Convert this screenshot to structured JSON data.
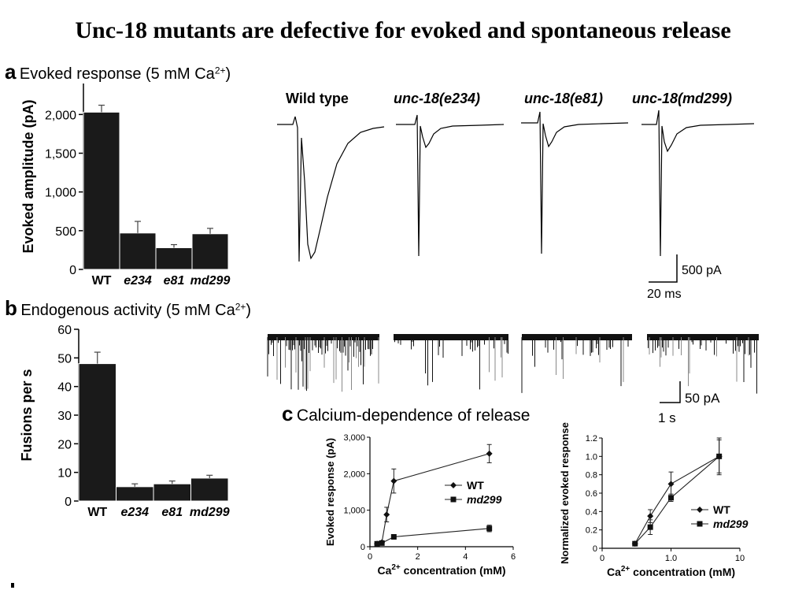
{
  "title": "Unc-18 mutants are defective for evoked and spontaneous release",
  "panel_a": {
    "letter": "a",
    "title": "Evoked response (5 mM Ca",
    "title_sup": "2+",
    "title_end": ")",
    "trace_labels": [
      "Wild type",
      "unc-18(e234)",
      "unc-18(e81)",
      "unc-18(md299)"
    ],
    "scale_y": "500 pA",
    "scale_x": "20 ms"
  },
  "panel_b": {
    "letter": "b",
    "title": "Endogenous activity (5 mM Ca",
    "title_sup": "2+",
    "title_end": ")",
    "scale_y": "50 pA",
    "scale_x": "1 s"
  },
  "panel_c": {
    "letter": "c",
    "title": "Calcium-dependence of release"
  },
  "chart_data": [
    {
      "id": "a-bar",
      "type": "bar",
      "ylabel": "Evoked amplitude (pA)",
      "categories": [
        "WT",
        "e234",
        "e81",
        "md299"
      ],
      "values": [
        2030,
        470,
        280,
        460
      ],
      "errors": [
        90,
        150,
        40,
        70
      ],
      "ylim": [
        0,
        2400
      ],
      "yticks": [
        0,
        500,
        1000,
        1500,
        2000
      ],
      "ytick_labels": [
        "0",
        "500",
        "1,000",
        "1,500",
        "2,000"
      ]
    },
    {
      "id": "b-bar",
      "type": "bar",
      "ylabel": "Fusions per s",
      "categories": [
        "WT",
        "e234",
        "e81",
        "md299"
      ],
      "values": [
        48,
        5,
        6,
        8
      ],
      "errors": [
        4,
        1,
        1,
        1
      ],
      "ylim": [
        0,
        60
      ],
      "yticks": [
        0,
        10,
        20,
        30,
        40,
        50,
        60
      ],
      "ytick_labels": [
        "0",
        "10",
        "20",
        "30",
        "40",
        "50",
        "60"
      ]
    },
    {
      "id": "c-left",
      "type": "line",
      "xlabel": "Ca",
      "xlabel_sup": "2+",
      "xlabel_end": " concentration (mM)",
      "ylabel": "Evoked response (pA)",
      "xlim": [
        0,
        6
      ],
      "ylim": [
        0,
        3000
      ],
      "xticks": [
        0,
        2,
        4,
        6
      ],
      "yticks": [
        0,
        1000,
        2000,
        3000
      ],
      "ytick_labels": [
        "0",
        "1,000",
        "2,000",
        "3,000"
      ],
      "legend_position": "right",
      "series": [
        {
          "name": "WT",
          "marker": "diamond",
          "x": [
            0.3,
            0.5,
            0.7,
            1.0,
            5.0
          ],
          "y": [
            80,
            120,
            880,
            1800,
            2550
          ],
          "err": [
            20,
            30,
            200,
            330,
            250
          ]
        },
        {
          "name": "md299",
          "marker": "square",
          "x": [
            0.3,
            0.5,
            1.0,
            5.0
          ],
          "y": [
            80,
            100,
            270,
            500
          ],
          "err": [
            20,
            20,
            40,
            90
          ]
        }
      ]
    },
    {
      "id": "c-right",
      "type": "line",
      "xlabel": "Ca",
      "xlabel_sup": "2+",
      "xlabel_end": " concentration (mM)",
      "ylabel": "Normalized evoked response",
      "xlim": [
        0,
        10
      ],
      "ylim": [
        0,
        1.2
      ],
      "xtick_labels": [
        "0",
        "1.0",
        "10"
      ],
      "yticks": [
        0,
        0.2,
        0.4,
        0.6,
        0.8,
        1.0,
        1.2
      ],
      "ytick_labels": [
        "0",
        "0.2",
        "0.4",
        "0.6",
        "0.8",
        "1.0",
        "1.2"
      ],
      "legend_position": "bottom-right",
      "series": [
        {
          "name": "WT",
          "marker": "diamond",
          "x": [
            0.3,
            0.5,
            1.0,
            5.0
          ],
          "y": [
            0.05,
            0.35,
            0.7,
            1.0
          ],
          "err": [
            0.02,
            0.07,
            0.13,
            0.18
          ]
        },
        {
          "name": "md299",
          "marker": "square",
          "x": [
            0.3,
            0.5,
            1.0,
            5.0
          ],
          "y": [
            0.05,
            0.23,
            0.55,
            1.0
          ],
          "err": [
            0.02,
            0.08,
            0.04,
            0.2
          ]
        }
      ]
    }
  ]
}
